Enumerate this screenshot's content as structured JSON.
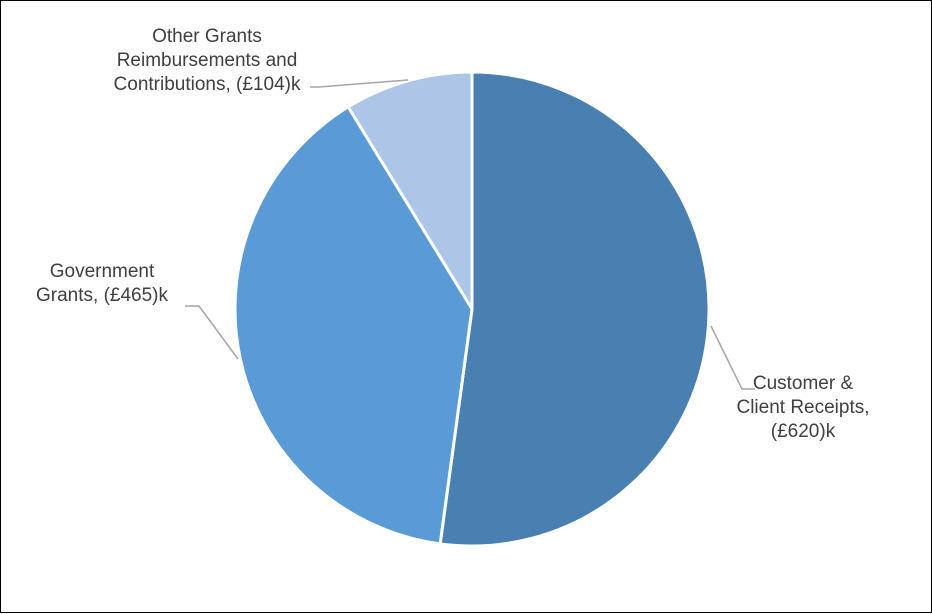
{
  "chart_data": {
    "type": "pie",
    "title": "",
    "start_angle_deg": 0,
    "direction": "clockwise",
    "slices": [
      {
        "label_lines": [
          "Customer &",
          "Client Receipts,",
          "(£620)k"
        ],
        "value": 620,
        "color": "#4a7fb1"
      },
      {
        "label_lines": [
          "Government",
          "Grants, (£465)k"
        ],
        "value": 465,
        "color": "#5b9bd5"
      },
      {
        "label_lines": [
          "Other Grants",
          "Reimbursements and",
          "Contributions, (£104)k"
        ],
        "value": 104,
        "color": "#adc5e6"
      }
    ],
    "leader_line_color": "#a6a6a6",
    "slice_border_color": "#ffffff",
    "legend": "none"
  }
}
